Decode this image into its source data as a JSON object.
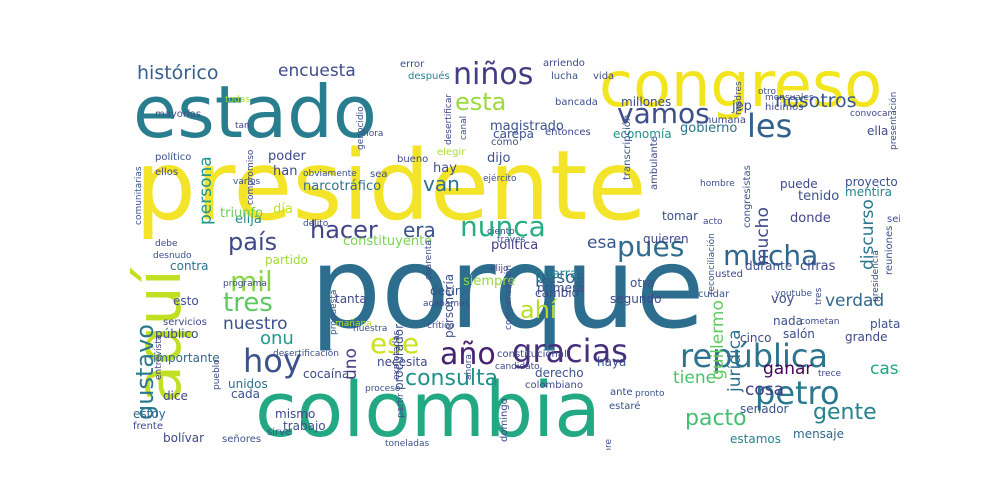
{
  "cloud": {
    "words": [
      {
        "text": "porque",
        "color": "#2d6e8e"
      },
      {
        "text": "presidente",
        "color": "#f3e42a"
      },
      {
        "text": "colombia",
        "color": "#23a884"
      },
      {
        "text": "estado",
        "color": "#287d8e"
      },
      {
        "text": "congreso",
        "color": "#f2e51d"
      },
      {
        "text": "aquí",
        "color": "#c2df23"
      },
      {
        "text": "república",
        "color": "#2c738e"
      },
      {
        "text": "gracias",
        "color": "#472f7d"
      },
      {
        "text": "petro",
        "color": "#2a788e"
      },
      {
        "text": "les",
        "color": "#34608d"
      },
      {
        "text": "niños",
        "color": "#433d84"
      },
      {
        "text": "hoy",
        "color": "#3b528b"
      },
      {
        "text": "mil",
        "color": "#8bd646"
      },
      {
        "text": "nunca",
        "color": "#27ad81"
      },
      {
        "text": "pues",
        "color": "#2f6c8e"
      },
      {
        "text": "mucha",
        "color": "#31668e"
      },
      {
        "text": "vamos",
        "color": "#3c4f8a"
      },
      {
        "text": "esta",
        "color": "#9bd93c"
      },
      {
        "text": "hacer",
        "color": "#414487"
      },
      {
        "text": "país",
        "color": "#3e4989"
      },
      {
        "text": "tres",
        "color": "#5ec962"
      },
      {
        "text": "año",
        "color": "#482173"
      },
      {
        "text": "ese",
        "color": "#cde11d"
      },
      {
        "text": "consulta",
        "color": "#21918c"
      },
      {
        "text": "gente",
        "color": "#26828e"
      },
      {
        "text": "pacto",
        "color": "#44bf70"
      },
      {
        "text": "gustavo",
        "color": "#2a788e"
      },
      {
        "text": "ahí",
        "color": "#b8de29"
      },
      {
        "text": "era",
        "color": "#3b528b"
      },
      {
        "text": "histórico",
        "color": "#355f8d"
      },
      {
        "text": "encuesta",
        "color": "#3e4c8a"
      },
      {
        "text": "nosotros",
        "color": "#39568c"
      },
      {
        "text": "verdad",
        "color": "#31688e"
      },
      {
        "text": "van",
        "color": "#2c718e"
      },
      {
        "text": "pesos",
        "color": "#355e8d"
      },
      {
        "text": "onu",
        "color": "#1f9a8a"
      },
      {
        "text": "tiene",
        "color": "#4ac16d"
      },
      {
        "text": "casa",
        "color": "#21a685"
      },
      {
        "text": "ganar",
        "color": "#450559"
      },
      {
        "text": "cosa",
        "color": "#443a83"
      },
      {
        "text": "esa",
        "color": "#39568c"
      },
      {
        "text": "nuestro",
        "color": "#3b528b"
      },
      {
        "text": "uno",
        "color": "#423f85"
      },
      {
        "text": "persona",
        "color": "#1f968b"
      },
      {
        "text": "jurídica",
        "color": "#2d708e"
      },
      {
        "text": "guillermo",
        "color": "#63cb5f"
      },
      {
        "text": "mucho",
        "color": "#3e4a89"
      },
      {
        "text": "discurso",
        "color": "#2a778e"
      },
      {
        "text": "magistrado",
        "color": "#3b528b"
      },
      {
        "text": "constituyente",
        "color": "#7ad151"
      },
      {
        "text": "elija",
        "color": "#238a8d"
      },
      {
        "text": "día",
        "color": "#c2df23"
      },
      {
        "text": "triunfo",
        "color": "#6ccd5a"
      },
      {
        "text": "narcotráfico",
        "color": "#2d708e"
      },
      {
        "text": "tenido",
        "color": "#3b528b"
      },
      {
        "text": "donde",
        "color": "#414487"
      },
      {
        "text": "cifras",
        "color": "#3e4989"
      },
      {
        "text": "mentira",
        "color": "#25848e"
      },
      {
        "text": "gobierno",
        "color": "#2b748e"
      },
      {
        "text": "jep",
        "color": "#3b528b"
      },
      {
        "text": "millones",
        "color": "#3e4989"
      },
      {
        "text": "política",
        "color": "#433e85"
      },
      {
        "text": "dijo",
        "color": "#3a538b"
      },
      {
        "text": "hay",
        "color": "#3b528b"
      },
      {
        "text": "han",
        "color": "#3e4989"
      },
      {
        "text": "poder",
        "color": "#3e4989"
      },
      {
        "text": "contra",
        "color": "#2c718e"
      },
      {
        "text": "esto",
        "color": "#3b528b"
      },
      {
        "text": "tanta",
        "color": "#3e4989"
      },
      {
        "text": "decir",
        "color": "#3b528b"
      },
      {
        "text": "cambio",
        "color": "#3e4989"
      },
      {
        "text": "otra",
        "color": "#3b528b"
      },
      {
        "text": "cinco",
        "color": "#3e4989"
      },
      {
        "text": "público",
        "color": "#3b528b"
      },
      {
        "text": "importante",
        "color": "#31688e"
      },
      {
        "text": "unidos",
        "color": "#2c718e"
      },
      {
        "text": "cada",
        "color": "#3b528b"
      },
      {
        "text": "dice",
        "color": "#3e4989"
      },
      {
        "text": "estoy",
        "color": "#31688e"
      },
      {
        "text": "bolívar",
        "color": "#3e4989"
      },
      {
        "text": "señores",
        "color": "#3b528b"
      },
      {
        "text": "mismo",
        "color": "#3e4989"
      },
      {
        "text": "trabajo",
        "color": "#3b528b"
      },
      {
        "text": "necesita",
        "color": "#3e4989"
      },
      {
        "text": "mensaje",
        "color": "#31688e"
      },
      {
        "text": "senador",
        "color": "#3b528b"
      },
      {
        "text": "estamos",
        "color": "#25848e"
      },
      {
        "text": "grande",
        "color": "#3e4989"
      },
      {
        "text": "plata",
        "color": "#3b528b"
      },
      {
        "text": "salón",
        "color": "#3e4989"
      },
      {
        "text": "nada",
        "color": "#3b528b"
      },
      {
        "text": "voy",
        "color": "#3e4989"
      },
      {
        "text": "durante",
        "color": "#3b528b"
      },
      {
        "text": "usted",
        "color": "#3e4989"
      },
      {
        "text": "guerra",
        "color": "#25848e"
      },
      {
        "text": "primera",
        "color": "#3b528b"
      },
      {
        "text": "segundo",
        "color": "#3e4989"
      },
      {
        "text": "cuidar",
        "color": "#3b528b"
      },
      {
        "text": "quieren",
        "color": "#3e4989"
      },
      {
        "text": "tomar",
        "color": "#3b528b"
      },
      {
        "text": "puede",
        "color": "#3e4989"
      },
      {
        "text": "proyecto",
        "color": "#3b528b"
      },
      {
        "text": "economía",
        "color": "#21918c"
      },
      {
        "text": "humana",
        "color": "#3e4989"
      },
      {
        "text": "carepa",
        "color": "#3b528b"
      },
      {
        "text": "entonces",
        "color": "#3e4989"
      },
      {
        "text": "bancada",
        "color": "#3b528b"
      },
      {
        "text": "hicimos",
        "color": "#3e4989"
      },
      {
        "text": "después",
        "color": "#25848e"
      },
      {
        "text": "error",
        "color": "#3b528b"
      },
      {
        "text": "arriendo",
        "color": "#3e4989"
      },
      {
        "text": "lucha",
        "color": "#3b528b"
      },
      {
        "text": "vida",
        "color": "#3e4989"
      },
      {
        "text": "mayorías",
        "color": "#3b528b"
      },
      {
        "text": "todas",
        "color": "#a8db34"
      },
      {
        "text": "tan",
        "color": "#3e4989"
      },
      {
        "text": "político",
        "color": "#3b528b"
      },
      {
        "text": "ellos",
        "color": "#3e4989"
      },
      {
        "text": "varios",
        "color": "#3b528b"
      },
      {
        "text": "debe",
        "color": "#3e4989"
      },
      {
        "text": "desnudo",
        "color": "#3b528b"
      },
      {
        "text": "partido",
        "color": "#a0da39"
      },
      {
        "text": "servicios",
        "color": "#3e4989"
      },
      {
        "text": "procurador",
        "color": "#3b528b"
      },
      {
        "text": "crítico",
        "color": "#3e4989"
      },
      {
        "text": "personería",
        "color": "#3b528b"
      },
      {
        "text": "siempre",
        "color": "#95d840"
      },
      {
        "text": "candidato",
        "color": "#3e4989"
      },
      {
        "text": "derecho",
        "color": "#3b528b"
      },
      {
        "text": "colombiano",
        "color": "#3e4989"
      },
      {
        "text": "haya",
        "color": "#3b528b"
      },
      {
        "text": "ante",
        "color": "#3e4989"
      },
      {
        "text": "estaré",
        "color": "#3b528b"
      },
      {
        "text": "constitucional",
        "color": "#3e4989"
      },
      {
        "text": "nuestra",
        "color": "#3b528b"
      },
      {
        "text": "cocaína",
        "color": "#3e4989"
      },
      {
        "text": "sirve",
        "color": "#3b528b"
      },
      {
        "text": "frente",
        "color": "#3e4989"
      },
      {
        "text": "cómo",
        "color": "#3b528b"
      },
      {
        "text": "elegir",
        "color": "#a8db34"
      },
      {
        "text": "bueno",
        "color": "#3e4989"
      },
      {
        "text": "sea",
        "color": "#3b528b"
      },
      {
        "text": "hora",
        "color": "#3e4989"
      },
      {
        "text": "delito",
        "color": "#3b528b"
      },
      {
        "text": "presidencia",
        "color": "#3e4989"
      },
      {
        "text": "reuniones",
        "color": "#3b528b"
      },
      {
        "text": "seis",
        "color": "#3e4989"
      },
      {
        "text": "congresistas",
        "color": "#3b528b"
      },
      {
        "text": "ambulante",
        "color": "#3e4989"
      },
      {
        "text": "transcripción",
        "color": "#3b528b"
      },
      {
        "text": "ella",
        "color": "#3e4989"
      },
      {
        "text": "otro",
        "color": "#3b528b"
      },
      {
        "text": "convocar",
        "color": "#3e4989"
      },
      {
        "text": "mensuales",
        "color": "#3b528b"
      },
      {
        "text": "presentación",
        "color": "#3e4989"
      },
      {
        "text": "comunitarias",
        "color": "#3b528b"
      },
      {
        "text": "madres",
        "color": "#3e4989"
      },
      {
        "text": "hombre",
        "color": "#3b528b"
      },
      {
        "text": "acto",
        "color": "#3e4989"
      },
      {
        "text": "traves",
        "color": "#3b528b"
      },
      {
        "text": "ciento",
        "color": "#3e4989"
      },
      {
        "text": "propuesta",
        "color": "#3b528b"
      },
      {
        "text": "mañana",
        "color": "#b8de29"
      },
      {
        "text": "programa",
        "color": "#3e4989"
      },
      {
        "text": "septiembre",
        "color": "#3b528b"
      },
      {
        "text": "domingo",
        "color": "#3e4989"
      },
      {
        "text": "pronto",
        "color": "#3b528b"
      },
      {
        "text": "trece",
        "color": "#3e4989"
      },
      {
        "text": "youtube",
        "color": "#3b528b"
      },
      {
        "text": "cometan",
        "color": "#3e4989"
      },
      {
        "text": "reconciliación",
        "color": "#3b528b"
      },
      {
        "text": "partir",
        "color": "#3e4989"
      },
      {
        "text": "proceso",
        "color": "#3b528b"
      },
      {
        "text": "acabamos",
        "color": "#3e4989"
      },
      {
        "text": "compensación",
        "color": "#3b528b"
      },
      {
        "text": "elijo",
        "color": "#3e4989"
      },
      {
        "text": "obviamente",
        "color": "#3b528b"
      },
      {
        "text": "compromiso",
        "color": "#3e4989"
      },
      {
        "text": "genocidio",
        "color": "#3b528b"
      },
      {
        "text": "desertificar",
        "color": "#3e4989"
      },
      {
        "text": "canal",
        "color": "#3b528b"
      },
      {
        "text": "entrevista",
        "color": "#3e4989"
      },
      {
        "text": "desertificación",
        "color": "#3b528b"
      },
      {
        "text": "pueblo",
        "color": "#3e4989"
      },
      {
        "text": "ejército",
        "color": "#3b528b"
      },
      {
        "text": "explotadas",
        "color": "#3e4989"
      },
      {
        "text": "toneladas",
        "color": "#3b528b"
      },
      {
        "text": "cuarenta",
        "color": "#3e4989"
      },
      {
        "text": "ahora",
        "color": "#3b528b"
      },
      {
        "text": "tres",
        "color": "#3e4989"
      }
    ]
  }
}
